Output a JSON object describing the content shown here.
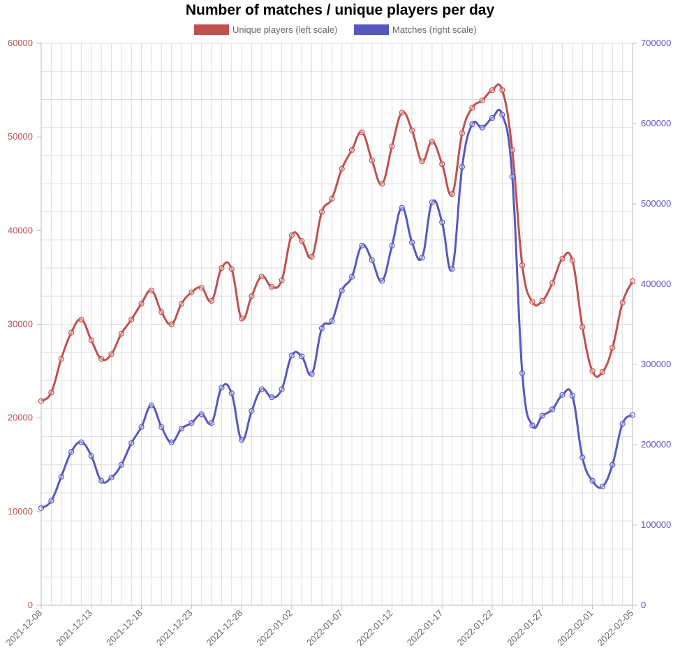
{
  "chart_data": {
    "type": "line",
    "title": "Number of matches / unique players per day",
    "x": [
      "2021-12-08",
      "2021-12-09",
      "2021-12-10",
      "2021-12-11",
      "2021-12-12",
      "2021-12-13",
      "2021-12-14",
      "2021-12-15",
      "2021-12-16",
      "2021-12-17",
      "2021-12-18",
      "2021-12-19",
      "2021-12-20",
      "2021-12-21",
      "2021-12-22",
      "2021-12-23",
      "2021-12-24",
      "2021-12-25",
      "2021-12-26",
      "2021-12-27",
      "2021-12-28",
      "2021-12-29",
      "2021-12-30",
      "2021-12-31",
      "2022-01-01",
      "2022-01-02",
      "2022-01-03",
      "2022-01-04",
      "2022-01-05",
      "2022-01-06",
      "2022-01-07",
      "2022-01-08",
      "2022-01-09",
      "2022-01-10",
      "2022-01-11",
      "2022-01-12",
      "2022-01-13",
      "2022-01-14",
      "2022-01-15",
      "2022-01-16",
      "2022-01-17",
      "2022-01-18",
      "2022-01-19",
      "2022-01-20",
      "2022-01-21",
      "2022-01-22",
      "2022-01-23",
      "2022-01-24",
      "2022-01-25",
      "2022-01-26",
      "2022-01-27",
      "2022-01-28",
      "2022-01-29",
      "2022-01-30",
      "2022-01-31",
      "2022-02-01",
      "2022-02-02",
      "2022-02-03",
      "2022-02-04",
      "2022-02-05"
    ],
    "x_tick_labels": [
      "2021-12-08",
      "2021-12-13",
      "2021-12-18",
      "2021-12-23",
      "2021-12-28",
      "2022-01-02",
      "2022-01-07",
      "2022-01-12",
      "2022-01-17",
      "2022-01-22",
      "2022-01-27",
      "2022-02-01",
      "2022-02-05"
    ],
    "series": [
      {
        "name": "Unique players (left scale)",
        "axis": "left",
        "color": "#c0504d",
        "values": [
          21800,
          22700,
          26300,
          29100,
          30500,
          28300,
          26300,
          26800,
          29000,
          30500,
          32200,
          33600,
          31300,
          30000,
          32200,
          33400,
          33900,
          32500,
          36000,
          35900,
          30600,
          33000,
          35100,
          34000,
          34700,
          39500,
          38900,
          37200,
          42000,
          43400,
          46600,
          48600,
          50500,
          47500,
          45000,
          49000,
          52600,
          50700,
          47400,
          49500,
          47100,
          43900,
          50400,
          53100,
          53900,
          55000,
          55000,
          48600,
          36300,
          32400,
          32500,
          34400,
          37000,
          36800,
          29700,
          25000,
          24900,
          27500,
          32300,
          34600
        ]
      },
      {
        "name": "Matches (right scale)",
        "axis": "right",
        "color": "#5757c0",
        "values": [
          121000,
          130000,
          160000,
          191000,
          203000,
          186000,
          155000,
          159000,
          175000,
          202000,
          222000,
          249000,
          222000,
          203000,
          220000,
          227000,
          238000,
          227000,
          271000,
          264000,
          206000,
          242000,
          269000,
          259000,
          269000,
          311000,
          310000,
          288000,
          345000,
          354000,
          392000,
          409000,
          448000,
          430000,
          404000,
          448000,
          495000,
          452000,
          433000,
          502000,
          477000,
          419000,
          546000,
          599000,
          595000,
          607000,
          611000,
          534000,
          289000,
          224000,
          236000,
          244000,
          262000,
          261000,
          184000,
          155000,
          148000,
          175000,
          226000,
          237000
        ]
      }
    ],
    "y_left": {
      "ylim": [
        0,
        60000
      ],
      "ticks": [
        "0",
        "10000",
        "20000",
        "30000",
        "40000",
        "50000",
        "60000"
      ],
      "color": "#c0504d"
    },
    "y_right": {
      "ylim": [
        0,
        700000
      ],
      "ticks": [
        "0",
        "100000",
        "200000",
        "300000",
        "400000",
        "500000",
        "600000",
        "700000"
      ],
      "color": "#5757c0"
    },
    "legend_placement": "top-center",
    "grid": true
  }
}
